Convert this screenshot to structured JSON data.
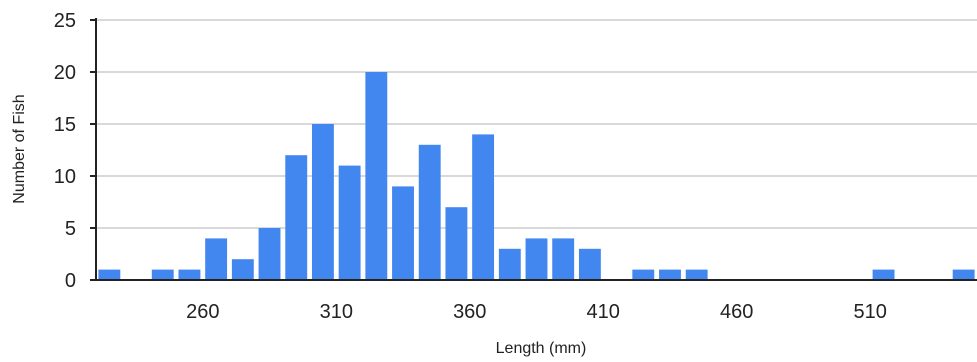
{
  "chart_data": {
    "type": "bar",
    "title": "",
    "xlabel": "Length (mm)",
    "ylabel": "Number of Fish",
    "x": [
      225,
      235,
      245,
      255,
      265,
      275,
      285,
      295,
      305,
      315,
      325,
      335,
      345,
      355,
      365,
      375,
      385,
      395,
      405,
      415,
      425,
      435,
      445,
      455,
      465,
      475,
      485,
      495,
      505,
      515,
      525,
      535,
      545
    ],
    "values": [
      1,
      0,
      1,
      1,
      4,
      2,
      5,
      12,
      15,
      11,
      20,
      9,
      13,
      7,
      14,
      3,
      4,
      4,
      3,
      0,
      1,
      1,
      1,
      0,
      0,
      0,
      0,
      0,
      0,
      1,
      0,
      0,
      1
    ],
    "xlim": [
      220,
      550
    ],
    "ylim": [
      0,
      25
    ],
    "x_ticks": [
      260,
      310,
      360,
      410,
      460,
      510
    ],
    "y_ticks": [
      0,
      5,
      10,
      15,
      20,
      25
    ],
    "grid": true,
    "bar_color": "#4287F0",
    "grid_color": "#D9D9D9",
    "axis_color": "#222222"
  }
}
